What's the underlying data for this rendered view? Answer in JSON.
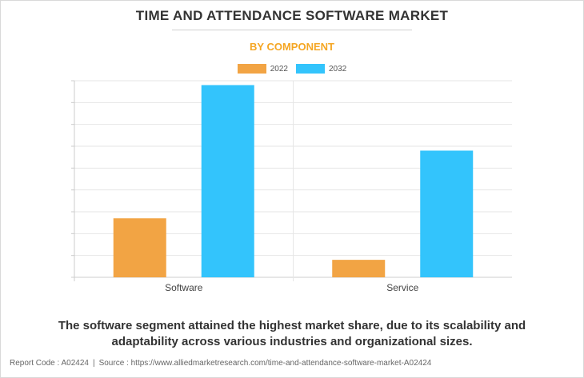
{
  "header": {
    "title": "TIME AND ATTENDANCE SOFTWARE MARKET",
    "subtitle": "BY COMPONENT"
  },
  "colors": {
    "series_2022": "#f2a444",
    "series_2032": "#33c4fc",
    "subtitle": "#f5a623",
    "grid": "#e6e6e6"
  },
  "chart_data": {
    "type": "bar",
    "categories": [
      "Software",
      "Service"
    ],
    "series": [
      {
        "name": "2022",
        "values": [
          27,
          8
        ]
      },
      {
        "name": "2032",
        "values": [
          88,
          58
        ]
      }
    ],
    "ylim": [
      0,
      90
    ],
    "grid": true,
    "legend": "top-center",
    "y_tick_labels_shown": false
  },
  "caption": "The software segment attained the highest market share, due to its scalability and adaptability across various industries and organizational sizes.",
  "footer": {
    "report_code": "Report Code : A02424",
    "separator": "|",
    "source": "Source : https://www.alliedmarketresearch.com/time-and-attendance-software-market-A02424"
  }
}
